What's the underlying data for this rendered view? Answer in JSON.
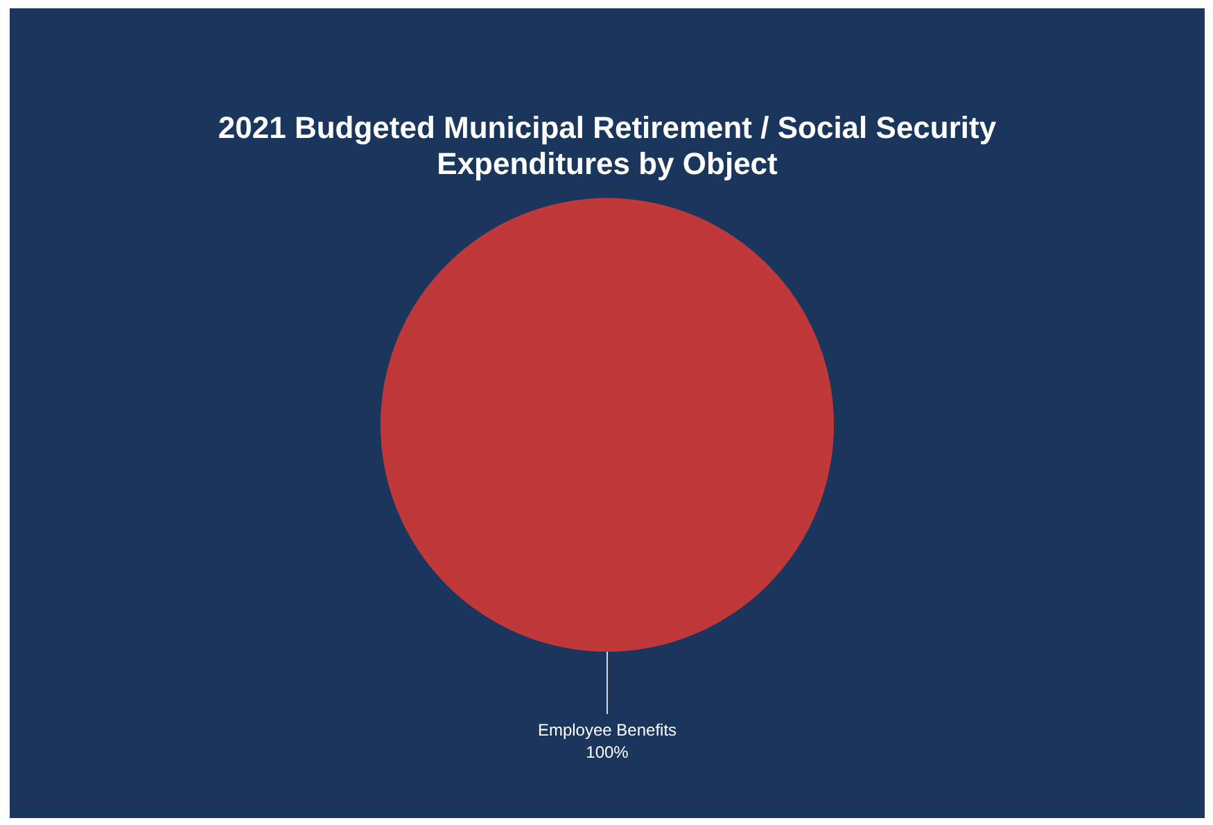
{
  "chart_data": {
    "type": "pie",
    "title": "2021 Budgeted Municipal Retirement / Social Security Expenditures by Object",
    "categories": [
      "Employee Benefits"
    ],
    "values": [
      100
    ],
    "value_labels": [
      "100%"
    ],
    "colors": [
      "#c0393a"
    ],
    "legend": false
  }
}
